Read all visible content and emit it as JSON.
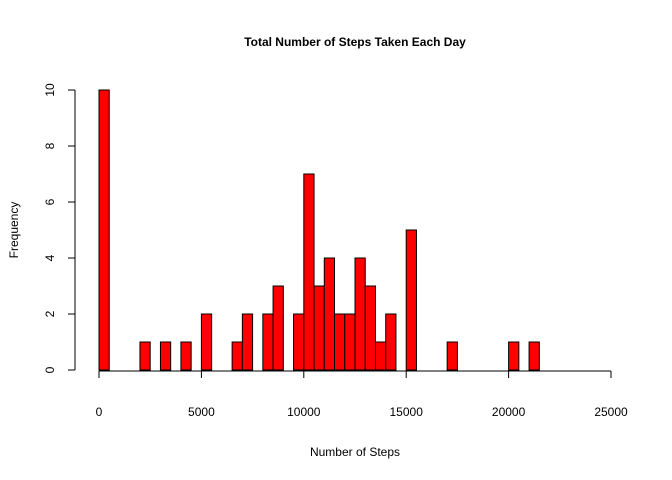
{
  "chart_data": {
    "type": "bar",
    "title": "Total Number of Steps Taken Each Day",
    "xlabel": "Number of Steps",
    "ylabel": "Frequency",
    "xlim": [
      0,
      25000
    ],
    "ylim": [
      0,
      10
    ],
    "x_ticks": [
      0,
      5000,
      10000,
      15000,
      20000,
      25000
    ],
    "y_ticks": [
      0,
      2,
      4,
      6,
      8,
      10
    ],
    "bin_width": 500,
    "bar_color": "#ff0000",
    "grid": false,
    "bins": [
      {
        "start": 0,
        "count": 10
      },
      {
        "start": 2000,
        "count": 1
      },
      {
        "start": 3000,
        "count": 1
      },
      {
        "start": 4000,
        "count": 1
      },
      {
        "start": 5000,
        "count": 2
      },
      {
        "start": 6500,
        "count": 1
      },
      {
        "start": 7000,
        "count": 2
      },
      {
        "start": 8000,
        "count": 2
      },
      {
        "start": 8500,
        "count": 3
      },
      {
        "start": 9500,
        "count": 2
      },
      {
        "start": 10000,
        "count": 7
      },
      {
        "start": 10500,
        "count": 3
      },
      {
        "start": 11000,
        "count": 4
      },
      {
        "start": 11500,
        "count": 2
      },
      {
        "start": 12000,
        "count": 2
      },
      {
        "start": 12500,
        "count": 4
      },
      {
        "start": 13000,
        "count": 3
      },
      {
        "start": 13500,
        "count": 1
      },
      {
        "start": 14000,
        "count": 2
      },
      {
        "start": 15000,
        "count": 5
      },
      {
        "start": 17000,
        "count": 1
      },
      {
        "start": 20000,
        "count": 1
      },
      {
        "start": 21000,
        "count": 1
      }
    ]
  }
}
